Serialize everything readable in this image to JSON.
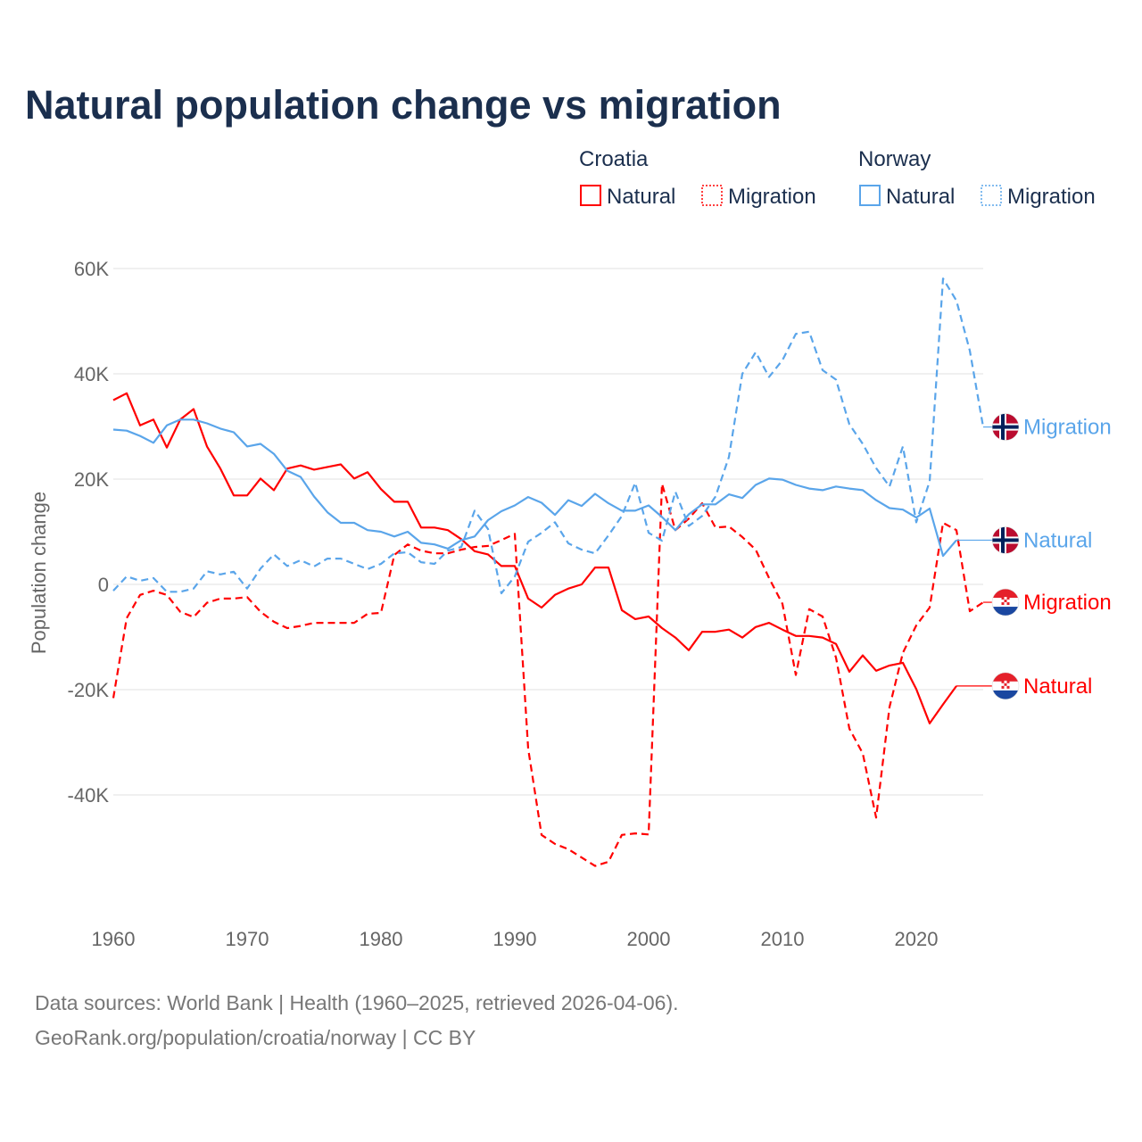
{
  "chart_data": {
    "type": "line",
    "title": "Natural population change vs migration",
    "xlabel": "",
    "ylabel": "Population change",
    "xlim": [
      1960,
      2025
    ],
    "ylim": [
      -60000,
      60000
    ],
    "x_ticks": [
      1960,
      1970,
      1980,
      1990,
      2000,
      2010,
      2020
    ],
    "x_tick_labels": [
      "1960",
      "1970",
      "1980",
      "1990",
      "2000",
      "2010",
      "2020"
    ],
    "y_ticks": [
      60000,
      40000,
      20000,
      0,
      -20000,
      -40000
    ],
    "y_tick_labels": [
      "60K",
      "40K",
      "20K",
      "0",
      "-20K",
      "-40K"
    ],
    "grid": true,
    "legend": {
      "placement": "top-right",
      "groups": [
        {
          "country": "Croatia",
          "items": [
            "Natural",
            "Migration"
          ]
        },
        {
          "country": "Norway",
          "items": [
            "Natural",
            "Migration"
          ]
        }
      ]
    },
    "series": [
      {
        "name": "Croatia Natural",
        "country": "Croatia",
        "kind": "Natural",
        "end_label": "Natural",
        "color": "#ff0000",
        "dashed": false,
        "start_year": 1960,
        "values": [
          35000,
          36300,
          30200,
          31300,
          26000,
          31300,
          33300,
          26200,
          22000,
          16900,
          16900,
          20100,
          17900,
          22000,
          22600,
          21800,
          22300,
          22800,
          20100,
          21300,
          18100,
          15700,
          15700,
          10800,
          10800,
          10300,
          8600,
          6300,
          5700,
          3500,
          3500,
          -2700,
          -4400,
          -2000,
          -800,
          0,
          3200,
          3200,
          -4900,
          -6600,
          -6100,
          -8300,
          -10100,
          -12500,
          -9000,
          -9000,
          -8600,
          -10100,
          -8100,
          -7300,
          -8600,
          -9800,
          -9800,
          -10100,
          -11300,
          -16600,
          -13500,
          -16400,
          -15400,
          -14900,
          -19900,
          -26400,
          -22800,
          -19300
        ]
      },
      {
        "name": "Croatia Migration",
        "country": "Croatia",
        "kind": "Migration",
        "end_label": "Migration",
        "color": "#ff0000",
        "dashed": true,
        "start_year": 1960,
        "values": [
          -21600,
          -6400,
          -2000,
          -1200,
          -2000,
          -5200,
          -6200,
          -3500,
          -2700,
          -2700,
          -2400,
          -5200,
          -7100,
          -8300,
          -7900,
          -7300,
          -7300,
          -7300,
          -7300,
          -5600,
          -5400,
          5600,
          7600,
          6400,
          5900,
          5900,
          6600,
          7100,
          7300,
          8400,
          9600,
          -31200,
          -47600,
          -49300,
          -50300,
          -51900,
          -53500,
          -52700,
          -47600,
          -47300,
          -47500,
          19100,
          10300,
          12500,
          15400,
          10800,
          11000,
          9000,
          6600,
          1200,
          -3700,
          -17200,
          -4700,
          -6100,
          -13900,
          -27400,
          -32100,
          -44300,
          -23300,
          -13000,
          -7800,
          -4400,
          11700,
          10300,
          -5100,
          -3400
        ]
      },
      {
        "name": "Norway Natural",
        "country": "Norway",
        "kind": "Natural",
        "end_label": "Natural",
        "color": "#5aa5ea",
        "dashed": false,
        "start_year": 1960,
        "values": [
          29400,
          29200,
          28200,
          26900,
          30200,
          31300,
          31300,
          30600,
          29600,
          28900,
          26200,
          26700,
          24800,
          21600,
          20400,
          16700,
          13700,
          11700,
          11700,
          10300,
          10000,
          9100,
          10000,
          7900,
          7600,
          6800,
          8400,
          9100,
          12200,
          13900,
          15000,
          16600,
          15500,
          13200,
          16000,
          14900,
          17200,
          15400,
          14000,
          14000,
          15000,
          12800,
          10300,
          13300,
          15200,
          15200,
          17100,
          16400,
          18900,
          20100,
          19900,
          18900,
          18200,
          17900,
          18600,
          18200,
          17900,
          16000,
          14500,
          14200,
          12700,
          14400,
          5400,
          8400
        ]
      },
      {
        "name": "Norway Migration",
        "country": "Norway",
        "kind": "Migration",
        "end_label": "Migration",
        "color": "#5aa5ea",
        "dashed": true,
        "start_year": 1960,
        "values": [
          -1200,
          1500,
          700,
          1200,
          -1400,
          -1400,
          -800,
          2500,
          1900,
          2400,
          -800,
          3000,
          5700,
          3500,
          4600,
          3400,
          4900,
          4900,
          3900,
          2900,
          3900,
          5900,
          6100,
          4200,
          3900,
          6400,
          7100,
          14000,
          10500,
          -1700,
          1500,
          8100,
          9800,
          11800,
          7800,
          6600,
          5900,
          9300,
          13000,
          19300,
          9800,
          8300,
          17600,
          11100,
          13000,
          16700,
          24200,
          40000,
          44100,
          39400,
          42600,
          47600,
          48000,
          40700,
          38900,
          30400,
          26700,
          22100,
          18600,
          26200,
          11800,
          19600,
          58100,
          53900,
          44400,
          29900
        ]
      }
    ]
  },
  "flags": {
    "Croatia": "croatia-flag-icon",
    "Norway": "norway-flag-icon"
  },
  "footer": {
    "line1": "Data sources: World Bank | Health (1960–2025, retrieved 2026-04-06).",
    "line2": "GeoRank.org/population/croatia/norway | CC BY"
  }
}
